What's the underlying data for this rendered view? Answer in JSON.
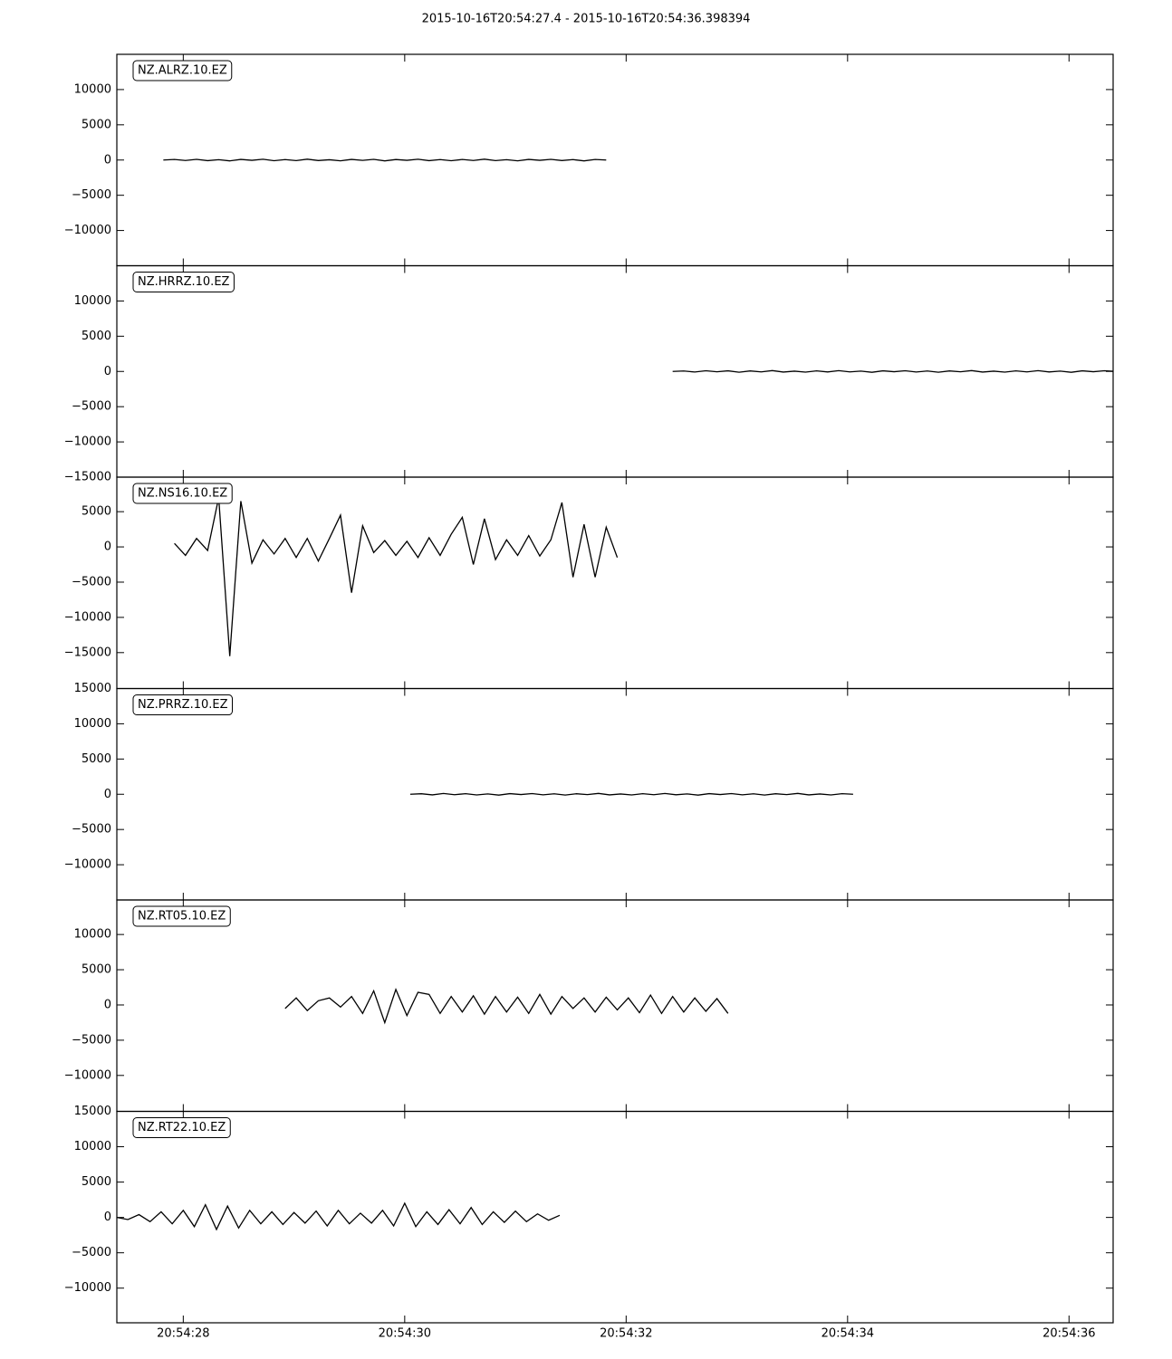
{
  "title": "2015-10-16T20:54:27.4  -  2015-10-16T20:54:36.398394",
  "chart_data": [
    {
      "type": "line",
      "label": "NZ.ALRZ.10.EZ",
      "color": "#000000",
      "xlim": [
        27.4,
        36.398394
      ],
      "xticks": [
        {
          "value": 28,
          "label": "20:54:28"
        },
        {
          "value": 30,
          "label": "20:54:30"
        },
        {
          "value": 32,
          "label": "20:54:32"
        },
        {
          "value": 34,
          "label": "20:54:34"
        },
        {
          "value": 36,
          "label": "20:54:36"
        }
      ],
      "ylim": [
        -15000,
        15000
      ],
      "yticks": [
        {
          "value": -10000,
          "label": "−10000"
        },
        {
          "value": -5000,
          "label": "−5000"
        },
        0,
        5000,
        10000
      ],
      "x": [
        27.82,
        27.92,
        28.02,
        28.12,
        28.22,
        28.32,
        28.42,
        28.52,
        28.62,
        28.72,
        28.82,
        28.92,
        29.02,
        29.12,
        29.22,
        29.32,
        29.42,
        29.52,
        29.62,
        29.72,
        29.82,
        29.92,
        30.02,
        30.12,
        30.22,
        30.32,
        30.42,
        30.52,
        30.62,
        30.72,
        30.82,
        30.92,
        31.02,
        31.12,
        31.22,
        31.32,
        31.42,
        31.52,
        31.62,
        31.72,
        31.82
      ],
      "values": [
        0,
        80,
        -60,
        100,
        -90,
        50,
        -120,
        90,
        -40,
        110,
        -100,
        60,
        -80,
        120,
        -70,
        40,
        -110,
        90,
        -50,
        100,
        -120,
        70,
        -40,
        110,
        -90,
        60,
        -100,
        80,
        -60,
        120,
        -80,
        50,
        -110,
        90,
        -40,
        100,
        -70,
        60,
        -120,
        80,
        0
      ]
    },
    {
      "type": "line",
      "label": "NZ.HRRZ.10.EZ",
      "color": "#000000",
      "xlim": [
        27.4,
        36.398394
      ],
      "xticks": [
        {
          "value": 28,
          "label": "20:54:28"
        },
        {
          "value": 30,
          "label": "20:54:30"
        },
        {
          "value": 32,
          "label": "20:54:32"
        },
        {
          "value": 34,
          "label": "20:54:34"
        },
        {
          "value": 36,
          "label": "20:54:36"
        }
      ],
      "ylim": [
        -15000,
        15000
      ],
      "yticks": [
        {
          "value": -15000,
          "label": "−15000"
        },
        {
          "value": -10000,
          "label": "−10000"
        },
        {
          "value": -5000,
          "label": "−5000"
        },
        0,
        5000,
        10000
      ],
      "x": [
        32.42,
        32.52,
        32.62,
        32.72,
        32.82,
        32.92,
        33.02,
        33.12,
        33.22,
        33.32,
        33.42,
        33.52,
        33.62,
        33.72,
        33.82,
        33.92,
        34.02,
        34.12,
        34.22,
        34.32,
        34.42,
        34.52,
        34.62,
        34.72,
        34.82,
        34.92,
        35.02,
        35.12,
        35.22,
        35.32,
        35.42,
        35.52,
        35.62,
        35.72,
        35.82,
        35.92,
        36.02,
        36.12,
        36.22,
        36.32,
        36.42
      ],
      "values": [
        0,
        60,
        -80,
        100,
        -50,
        90,
        -110,
        70,
        -60,
        120,
        -90,
        40,
        -100,
        80,
        -70,
        110,
        -60,
        50,
        -120,
        90,
        -40,
        100,
        -80,
        60,
        -110,
        70,
        -50,
        120,
        -90,
        40,
        -100,
        80,
        -60,
        110,
        -70,
        50,
        -120,
        90,
        -40,
        100,
        0
      ]
    },
    {
      "type": "line",
      "label": "NZ.NS16.10.EZ",
      "color": "#000000",
      "xlim": [
        27.4,
        36.398394
      ],
      "xticks": [
        {
          "value": 28,
          "label": "20:54:28"
        },
        {
          "value": 30,
          "label": "20:54:30"
        },
        {
          "value": 32,
          "label": "20:54:32"
        },
        {
          "value": 34,
          "label": "20:54:34"
        },
        {
          "value": 36,
          "label": "20:54:36"
        }
      ],
      "ylim": [
        -20100,
        9900
      ],
      "yticks": [
        {
          "value": -15000,
          "label": "−15000"
        },
        {
          "value": -10000,
          "label": "−10000"
        },
        {
          "value": -5000,
          "label": "−5000"
        },
        0,
        5000
      ],
      "x": [
        27.92,
        28.02,
        28.12,
        28.22,
        28.32,
        28.42,
        28.52,
        28.62,
        28.72,
        28.82,
        28.92,
        29.02,
        29.12,
        29.22,
        29.32,
        29.42,
        29.52,
        29.62,
        29.72,
        29.82,
        29.92,
        30.02,
        30.12,
        30.22,
        30.32,
        30.42,
        30.52,
        30.62,
        30.72,
        30.82,
        30.92,
        31.02,
        31.12,
        31.22,
        31.32,
        31.42,
        31.52,
        31.62,
        31.72,
        31.82,
        31.92
      ],
      "values": [
        500,
        -1200,
        1200,
        -500,
        7000,
        -15500,
        6500,
        -2300,
        1000,
        -1000,
        1200,
        -1500,
        1200,
        -2000,
        1200,
        4500,
        -6500,
        3000,
        -800,
        900,
        -1200,
        800,
        -1500,
        1300,
        -1200,
        1800,
        4200,
        -2500,
        4000,
        -1800,
        1000,
        -1200,
        1600,
        -1300,
        1000,
        6300,
        -4300,
        3200,
        -4300,
        2800,
        -1500
      ]
    },
    {
      "type": "line",
      "label": "NZ.PRRZ.10.EZ",
      "color": "#000000",
      "xlim": [
        27.4,
        36.398394
      ],
      "xticks": [
        {
          "value": 28,
          "label": "20:54:28"
        },
        {
          "value": 30,
          "label": "20:54:30"
        },
        {
          "value": 32,
          "label": "20:54:32"
        },
        {
          "value": 34,
          "label": "20:54:34"
        },
        {
          "value": 36,
          "label": "20:54:36"
        }
      ],
      "ylim": [
        -15000,
        15000
      ],
      "yticks": [
        {
          "value": -10000,
          "label": "−10000"
        },
        {
          "value": -5000,
          "label": "−5000"
        },
        0,
        5000,
        10000,
        15000
      ],
      "x": [
        30.05,
        30.15,
        30.25,
        30.35,
        30.45,
        30.55,
        30.65,
        30.75,
        30.85,
        30.95,
        31.05,
        31.15,
        31.25,
        31.35,
        31.45,
        31.55,
        31.65,
        31.75,
        31.85,
        31.95,
        32.05,
        32.15,
        32.25,
        32.35,
        32.45,
        32.55,
        32.65,
        32.75,
        32.85,
        32.95,
        33.05,
        33.15,
        33.25,
        33.35,
        33.45,
        33.55,
        33.65,
        33.75,
        33.85,
        33.95,
        34.05
      ],
      "values": [
        0,
        70,
        -90,
        110,
        -60,
        80,
        -100,
        50,
        -120,
        90,
        -40,
        100,
        -80,
        60,
        -110,
        70,
        -50,
        120,
        -90,
        40,
        -100,
        80,
        -60,
        110,
        -70,
        50,
        -120,
        90,
        -40,
        100,
        -80,
        60,
        -110,
        70,
        -50,
        120,
        -90,
        40,
        -100,
        80,
        0
      ]
    },
    {
      "type": "line",
      "label": "NZ.RT05.10.EZ",
      "color": "#000000",
      "xlim": [
        27.4,
        36.398394
      ],
      "xticks": [
        {
          "value": 28,
          "label": "20:54:28"
        },
        {
          "value": 30,
          "label": "20:54:30"
        },
        {
          "value": 32,
          "label": "20:54:32"
        },
        {
          "value": 34,
          "label": "20:54:34"
        },
        {
          "value": 36,
          "label": "20:54:36"
        }
      ],
      "ylim": [
        -15100,
        14900
      ],
      "yticks": [
        {
          "value": -10000,
          "label": "−10000"
        },
        {
          "value": -5000,
          "label": "−5000"
        },
        0,
        5000,
        10000
      ],
      "x": [
        28.92,
        29.02,
        29.12,
        29.22,
        29.32,
        29.42,
        29.52,
        29.62,
        29.72,
        29.82,
        29.92,
        30.02,
        30.12,
        30.22,
        30.32,
        30.42,
        30.52,
        30.62,
        30.72,
        30.82,
        30.92,
        31.02,
        31.12,
        31.22,
        31.32,
        31.42,
        31.52,
        31.62,
        31.72,
        31.82,
        31.92,
        32.02,
        32.12,
        32.22,
        32.32,
        32.42,
        32.52,
        32.62,
        32.72,
        32.82,
        32.92
      ],
      "values": [
        -500,
        1000,
        -800,
        600,
        1000,
        -300,
        1200,
        -1200,
        2000,
        -2500,
        2200,
        -1500,
        1800,
        1500,
        -1200,
        1200,
        -1000,
        1300,
        -1300,
        1200,
        -1000,
        1100,
        -1200,
        1500,
        -1300,
        1200,
        -500,
        1000,
        -1000,
        1100,
        -700,
        1000,
        -1100,
        1400,
        -1200,
        1200,
        -1000,
        1000,
        -900,
        900,
        -1200
      ]
    },
    {
      "type": "line",
      "label": "NZ.RT22.10.EZ",
      "color": "#000000",
      "xlim": [
        27.4,
        36.398394
      ],
      "xticks": [
        {
          "value": 28,
          "label": "20:54:28"
        },
        {
          "value": 30,
          "label": "20:54:30"
        },
        {
          "value": 32,
          "label": "20:54:32"
        },
        {
          "value": 34,
          "label": "20:54:34"
        },
        {
          "value": 36,
          "label": "20:54:36"
        }
      ],
      "ylim": [
        -14900,
        15000
      ],
      "yticks": [
        {
          "value": -10000,
          "label": "−10000"
        },
        {
          "value": -5000,
          "label": "−5000"
        },
        0,
        5000,
        10000,
        15000
      ],
      "x": [
        27.4,
        27.5,
        27.6,
        27.7,
        27.8,
        27.9,
        28.0,
        28.1,
        28.2,
        28.3,
        28.4,
        28.5,
        28.6,
        28.7,
        28.8,
        28.9,
        29.0,
        29.1,
        29.2,
        29.3,
        29.4,
        29.5,
        29.6,
        29.7,
        29.8,
        29.9,
        30.0,
        30.1,
        30.2,
        30.3,
        30.4,
        30.5,
        30.6,
        30.7,
        30.8,
        30.9,
        31.0,
        31.1,
        31.2,
        31.3,
        31.4
      ],
      "values": [
        0,
        -300,
        400,
        -600,
        800,
        -900,
        1000,
        -1300,
        1800,
        -1700,
        1600,
        -1500,
        1000,
        -900,
        800,
        -1000,
        700,
        -800,
        900,
        -1200,
        1000,
        -900,
        600,
        -800,
        1000,
        -1200,
        2000,
        -1300,
        800,
        -1000,
        1100,
        -900,
        1400,
        -1000,
        800,
        -700,
        900,
        -600,
        500,
        -400,
        300
      ]
    }
  ]
}
